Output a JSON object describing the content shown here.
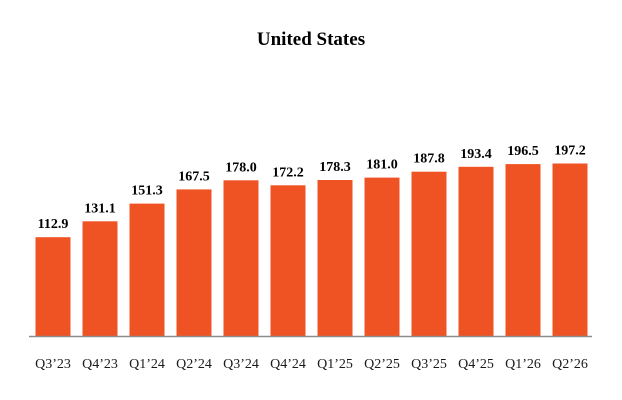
{
  "chart_data": {
    "type": "bar",
    "title": "United States",
    "categories": [
      "Q3’23",
      "Q4’23",
      "Q1’24",
      "Q2’24",
      "Q3’24",
      "Q4’24",
      "Q1’25",
      "Q2’25",
      "Q3’25",
      "Q4’25",
      "Q1’26",
      "Q2’26"
    ],
    "values": [
      112.9,
      131.1,
      151.3,
      167.5,
      178.0,
      172.2,
      178.3,
      181.0,
      187.8,
      193.4,
      196.5,
      197.2
    ],
    "value_labels": [
      "112.9",
      "131.1",
      "151.3",
      "167.5",
      "178.0",
      "172.2",
      "178.3",
      "181.0",
      "187.8",
      "193.4",
      "196.5",
      "197.2"
    ],
    "xlabel": "",
    "ylabel": "",
    "ylim": [
      0,
      200
    ],
    "grid": false,
    "legend": "none",
    "bar_color": "#F05323",
    "axis_color": "#8c8c8c"
  }
}
